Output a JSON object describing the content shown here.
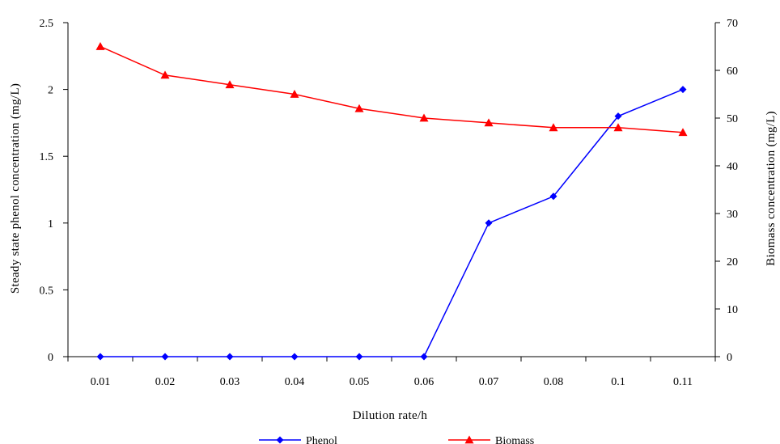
{
  "chart_data": {
    "type": "line",
    "categories": [
      "0.01",
      "0.02",
      "0.03",
      "0.04",
      "0.05",
      "0.06",
      "0.07",
      "0.08",
      "0.1",
      "0.11"
    ],
    "xlabel": "Dilution rate/h",
    "ylabel_left": "Steady state phenol concentration (mg/L)",
    "ylabel_right": "Biomass concentration (mg/L)",
    "y_left_lim": [
      0,
      2.5
    ],
    "y_left_ticks": [
      "0",
      "0.5",
      "1",
      "1.5",
      "2",
      "2.5"
    ],
    "y_right_lim": [
      0,
      70
    ],
    "y_right_ticks": [
      "0",
      "10",
      "20",
      "30",
      "40",
      "50",
      "60",
      "70"
    ],
    "grid": false,
    "legend_position": "bottom",
    "series": [
      {
        "name": "Phenol",
        "axis": "left",
        "color": "#0000ff",
        "marker": "diamond",
        "values": [
          0,
          0,
          0,
          0,
          0,
          0,
          1.0,
          1.2,
          1.8,
          2.0
        ]
      },
      {
        "name": "Biomass",
        "axis": "right",
        "color": "#ff0000",
        "marker": "triangle",
        "values": [
          65,
          59,
          57,
          55,
          52,
          50,
          49,
          48,
          48,
          47
        ]
      }
    ]
  }
}
